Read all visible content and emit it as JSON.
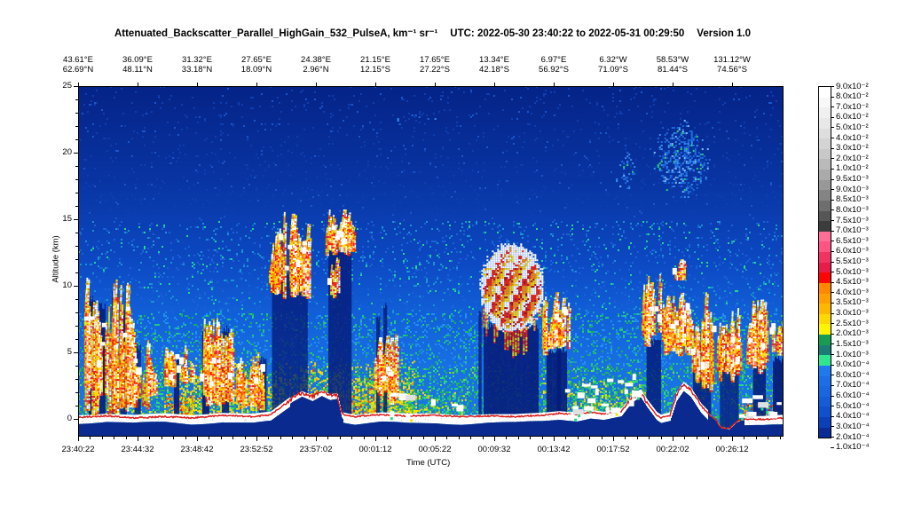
{
  "title": {
    "main": "Attenuated_Backscatter_Parallel_HighGain_532_PulseA, km⁻¹ sr⁻¹",
    "utc": "UTC: 2022-05-30 23:40:22 to 2022-05-31 00:29:50",
    "version": "Version 1.0"
  },
  "chart_data": {
    "type": "heatmap",
    "title": "Attenuated_Backscatter_Parallel_HighGain_532_PulseA, km⁻¹ sr⁻¹",
    "utc_range": "2022-05-30 23:40:22 to 2022-05-31 00:29:50",
    "version": "Version 1.0",
    "x_axis": {
      "label": "Time (UTC)",
      "ticks": [
        "23:40:22",
        "23:44:32",
        "23:48:42",
        "23:52:52",
        "23:57:02",
        "00:01:12",
        "00:05:22",
        "00:09:32",
        "00:13:42",
        "00:17:52",
        "00:22:02",
        "00:26:12"
      ],
      "minor_per_major": 5
    },
    "y_axis": {
      "label": "Altitude (km)",
      "ticks": [
        0,
        5,
        10,
        15,
        20,
        25
      ],
      "range": [
        -1.3,
        25
      ]
    },
    "top_axis": {
      "lon": [
        "43.61°E",
        "36.09°E",
        "31.32°E",
        "27.65°E",
        "24.38°E",
        "21.15°E",
        "17.65°E",
        "13.34°E",
        "6.97°E",
        "6.32°W",
        "58.53°W",
        "131.12°W"
      ],
      "lat": [
        "62.69°N",
        "48.11°N",
        "33.18°N",
        "18.09°N",
        "2.96°N",
        "12.15°S",
        "27.22°S",
        "42.18°S",
        "56.92°S",
        "71.09°S",
        "81.44°S",
        "74.56°S"
      ]
    },
    "colorbar": {
      "units": "km⁻¹ sr⁻¹",
      "tick_labels": [
        "9.0x10⁻²",
        "8.0x10⁻²",
        "7.0x10⁻²",
        "6.0x10⁻²",
        "5.0x10⁻²",
        "4.0x10⁻²",
        "3.0x10⁻²",
        "2.0x10⁻²",
        "1.0x10⁻²",
        "9.5x10⁻³",
        "9.0x10⁻³",
        "8.5x10⁻³",
        "8.0x10⁻³",
        "7.5x10⁻³",
        "7.0x10⁻³",
        "6.5x10⁻³",
        "6.0x10⁻³",
        "5.5x10⁻³",
        "5.0x10⁻³",
        "4.5x10⁻³",
        "4.0x10⁻³",
        "3.5x10⁻³",
        "3.0x10⁻³",
        "2.5x10⁻³",
        "2.0x10⁻³",
        "1.5x10⁻³",
        "1.0x10⁻³",
        "9.0x10⁻⁴",
        "8.0x10⁻⁴",
        "7.0x10⁻⁴",
        "6.0x10⁻⁴",
        "5.0x10⁻⁴",
        "4.0x10⁻⁴",
        "3.0x10⁻⁴",
        "2.0x10⁻⁴",
        "1.0x10⁻⁴"
      ],
      "colors": [
        "#ffffff",
        "#f8f8f8",
        "#f0f0f0",
        "#e8e8e8",
        "#dedede",
        "#d4d4d4",
        "#c8c8c8",
        "#bababa",
        "#aaaaaa",
        "#989898",
        "#848484",
        "#6e6e6e",
        "#565656",
        "#3c3c3c",
        "#ff6e96",
        "#ff5480",
        "#f23360",
        "#e81c48",
        "#ff0404",
        "#ff8800",
        "#ffa000",
        "#ffb800",
        "#ffd800",
        "#fff400",
        "#189c52",
        "#1a7d74",
        "#2ee690",
        "#1f7af0",
        "#1b6ee8",
        "#1866e0",
        "#145cd8",
        "#1150cc",
        "#0c40b8",
        "#0a2a96"
      ]
    },
    "render": {
      "bg_stops": [
        [
          25,
          "#052387"
        ],
        [
          18,
          "#0834a2"
        ],
        [
          12,
          "#0c48c2"
        ],
        [
          8,
          "#115fd8"
        ],
        [
          4,
          "#1870e2"
        ],
        [
          -1.3,
          "#1c7ae6"
        ]
      ],
      "subsurface_color": "#0a2a8f",
      "attenuation_color": "#061c7a",
      "surface_line_color": "#dc1414",
      "clouds": [
        {
          "style": "spiky",
          "t0": 0.009,
          "t1": 0.078,
          "a0": 0.4,
          "a1": 10.8,
          "d": 1.1
        },
        {
          "style": "spiky",
          "t0": 0.078,
          "t1": 0.113,
          "a0": 0.8,
          "a1": 6.5,
          "d": 0.9
        },
        {
          "style": "spiky",
          "t0": 0.122,
          "t1": 0.164,
          "a0": 2.4,
          "a1": 5.6,
          "d": 0.9
        },
        {
          "style": "spiky",
          "t0": 0.172,
          "t1": 0.219,
          "a0": 0.8,
          "a1": 7.6,
          "d": 1.0
        },
        {
          "style": "spiky",
          "t0": 0.226,
          "t1": 0.269,
          "a0": 0.8,
          "a1": 5.2,
          "d": 0.8
        },
        {
          "style": "spiky",
          "t0": 0.273,
          "t1": 0.327,
          "a0": 9.0,
          "a1": 15.6,
          "d": 1.3
        },
        {
          "style": "spiky",
          "t0": 0.352,
          "t1": 0.39,
          "a0": 12.2,
          "a1": 15.8,
          "d": 1.3
        },
        {
          "style": "spiky",
          "t0": 0.352,
          "t1": 0.37,
          "a0": 9.0,
          "a1": 12.5,
          "d": 0.5
        },
        {
          "style": "spiky",
          "t0": 0.415,
          "t1": 0.453,
          "a0": 1.2,
          "a1": 6.4,
          "d": 0.8
        },
        {
          "style": "band",
          "t0": 0.445,
          "t1": 0.478,
          "a0": 0.4,
          "a1": 2.4,
          "d": 0.7
        },
        {
          "style": "band",
          "t0": 0.481,
          "t1": 0.551,
          "a0": 0.2,
          "a1": 1.5,
          "d": 0.3
        },
        {
          "style": "anvil",
          "t0": 0.569,
          "t1": 0.659,
          "a0": 6.6,
          "a1": 13.2
        },
        {
          "style": "spiky",
          "t0": 0.659,
          "t1": 0.697,
          "a0": 4.8,
          "a1": 9.6,
          "d": 1.0
        },
        {
          "style": "band",
          "t0": 0.694,
          "t1": 0.803,
          "a0": 0.3,
          "a1": 3.6,
          "d": 0.8
        },
        {
          "style": "spiky",
          "t0": 0.8,
          "t1": 0.83,
          "a0": 5.5,
          "a1": 11.0,
          "d": 0.9
        },
        {
          "style": "spiky",
          "t0": 0.845,
          "t1": 0.865,
          "a0": 10.4,
          "a1": 12.3,
          "d": 0.6
        },
        {
          "style": "spiky",
          "t0": 0.83,
          "t1": 0.87,
          "a0": 4.5,
          "a1": 9.8,
          "d": 1.0
        },
        {
          "style": "spiky",
          "t0": 0.87,
          "t1": 0.902,
          "a0": 2.0,
          "a1": 9.6,
          "d": 1.0
        },
        {
          "style": "spiky",
          "t0": 0.906,
          "t1": 0.943,
          "a0": 2.8,
          "a1": 8.4,
          "d": 0.9
        },
        {
          "style": "spiky",
          "t0": 0.95,
          "t1": 0.981,
          "a0": 3.5,
          "a1": 9.0,
          "d": 0.9
        },
        {
          "style": "spiky",
          "t0": 0.982,
          "t1": 1.0,
          "a0": 4.5,
          "a1": 8.0,
          "d": 0.8
        },
        {
          "style": "band",
          "t0": 0.941,
          "t1": 1.0,
          "a0": 0.3,
          "a1": 2.0,
          "d": 0.6
        }
      ],
      "columns": [
        [
          0.015,
          0.023,
          9.0
        ],
        [
          0.03,
          0.038,
          8.5
        ],
        [
          0.048,
          0.055,
          9.5
        ],
        [
          0.06,
          0.068,
          8.0
        ],
        [
          0.08,
          0.088,
          5.5
        ],
        [
          0.136,
          0.143,
          4.5
        ],
        [
          0.176,
          0.186,
          6.5
        ],
        [
          0.204,
          0.214,
          6.8
        ],
        [
          0.257,
          0.267,
          4.5
        ],
        [
          0.275,
          0.325,
          10.8
        ],
        [
          0.355,
          0.387,
          12.6
        ],
        [
          0.423,
          0.428,
          7.5
        ],
        [
          0.433,
          0.437,
          8.5
        ],
        [
          0.568,
          0.571,
          8.0
        ],
        [
          0.575,
          0.652,
          7.0
        ],
        [
          0.664,
          0.692,
          5.2
        ],
        [
          0.679,
          0.683,
          7.6
        ],
        [
          0.806,
          0.825,
          5.8
        ],
        [
          0.872,
          0.896,
          5.5
        ],
        [
          0.91,
          0.936,
          4.6
        ],
        [
          0.957,
          0.974,
          5.0
        ],
        [
          0.985,
          1.0,
          4.5
        ]
      ],
      "aerosols": [
        [
          0.122,
          0.164,
          0,
          2.2,
          0.75,
          "orange"
        ],
        [
          0.141,
          0.48,
          0,
          4.6,
          0.5,
          "yellow"
        ],
        [
          0.43,
          0.55,
          0,
          2.6,
          0.4,
          "yellowgreen"
        ],
        [
          0.382,
          0.432,
          0.5,
          3.2,
          0.3,
          "orange"
        ],
        [
          0.659,
          0.803,
          0,
          3.4,
          0.45,
          "yellowgreen"
        ],
        [
          0.941,
          1.0,
          0,
          1.8,
          0.4,
          "orange"
        ],
        [
          0.0,
          0.122,
          0,
          1.2,
          0.22,
          "yellowgreen"
        ]
      ],
      "psc": [
        [
          0.811,
          0.898,
          16.6,
          22.6,
          0.5
        ],
        [
          0.76,
          0.792,
          17.0,
          20.6,
          0.28
        ],
        [
          0.387,
          0.558,
          21.8,
          23.4,
          0.06
        ]
      ],
      "terrain": [
        [
          0,
          0.15
        ],
        [
          0.04,
          0.25
        ],
        [
          0.078,
          0.1
        ],
        [
          0.122,
          0.2
        ],
        [
          0.16,
          0.1
        ],
        [
          0.204,
          0.3
        ],
        [
          0.248,
          0.2
        ],
        [
          0.273,
          0.35
        ],
        [
          0.304,
          1.6
        ],
        [
          0.317,
          2.0
        ],
        [
          0.332,
          1.7
        ],
        [
          0.345,
          2.1
        ],
        [
          0.357,
          1.8
        ],
        [
          0.367,
          1.9
        ],
        [
          0.374,
          0.4
        ],
        [
          0.392,
          0.2
        ],
        [
          0.43,
          0.35
        ],
        [
          0.468,
          0.25
        ],
        [
          0.506,
          0.3
        ],
        [
          0.543,
          0.2
        ],
        [
          0.581,
          0.25
        ],
        [
          0.619,
          0.2
        ],
        [
          0.657,
          0.3
        ],
        [
          0.682,
          0.45
        ],
        [
          0.707,
          0.35
        ],
        [
          0.726,
          0.55
        ],
        [
          0.745,
          0.4
        ],
        [
          0.77,
          0.6
        ],
        [
          0.785,
          1.6
        ],
        [
          0.797,
          2.0
        ],
        [
          0.807,
          1.2
        ],
        [
          0.82,
          0.3
        ],
        [
          0.826,
          0.1
        ],
        [
          0.839,
          0.3
        ],
        [
          0.848,
          1.8
        ],
        [
          0.858,
          2.6
        ],
        [
          0.868,
          2.2
        ],
        [
          0.883,
          1.0
        ],
        [
          0.896,
          0.3
        ],
        [
          0.903,
          0.0
        ],
        [
          0.911,
          -0.6
        ],
        [
          0.923,
          -0.7
        ],
        [
          0.933,
          -0.2
        ],
        [
          0.941,
          0.0
        ],
        [
          0.971,
          0.0
        ],
        [
          0.984,
          0.05
        ],
        [
          1,
          0.1
        ]
      ]
    }
  }
}
